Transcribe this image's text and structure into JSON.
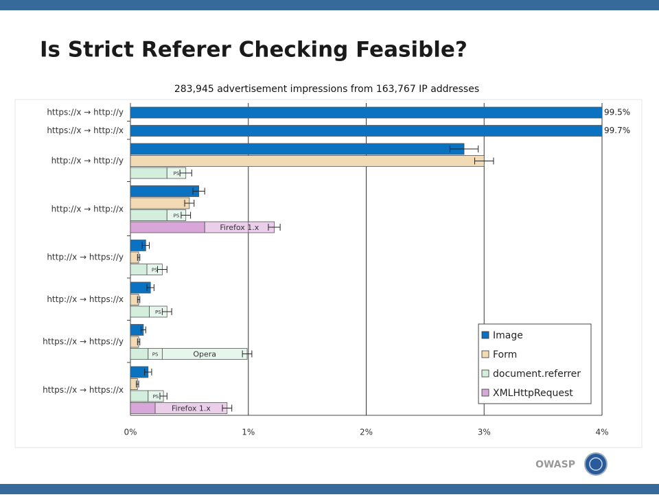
{
  "header": {
    "title": "Is Strict Referer Checking Feasible?"
  },
  "footer": {
    "brand": "OWASP"
  },
  "chart_data": {
    "type": "bar",
    "orientation": "horizontal",
    "title": "283,945 advertisement impressions from 163,767 IP addresses",
    "categories": [
      "https://x → http://y",
      "https://x → http://x",
      "http://x → http://y",
      "http://x → http://x",
      "http://x → https://y",
      "http://x → https://x",
      "https://x → https://y",
      "https://x → https://x"
    ],
    "xlim": [
      0,
      4
    ],
    "xticks": [
      {
        "value": 0,
        "label": "0%"
      },
      {
        "value": 1,
        "label": "1%"
      },
      {
        "value": 2,
        "label": "2%"
      },
      {
        "value": 3,
        "label": "3%"
      },
      {
        "value": 4,
        "label": "4%"
      }
    ],
    "grid": true,
    "legend": "lower right",
    "series": [
      {
        "name": "Image",
        "color": "#0a72c0",
        "values": [
          99.5,
          99.7,
          2.83,
          0.58,
          0.13,
          0.17,
          0.11,
          0.15
        ],
        "value_labels": [
          "99.5%",
          "99.7%",
          null,
          null,
          null,
          null,
          null,
          null
        ],
        "errors": [
          null,
          null,
          0.12,
          0.05,
          0.03,
          0.03,
          0.02,
          0.03
        ],
        "segments": [
          null,
          null,
          null,
          null,
          null,
          null,
          null,
          null
        ]
      },
      {
        "name": "Form",
        "color": "#f1dab4",
        "values": [
          null,
          null,
          3.0,
          0.5,
          0.07,
          0.07,
          0.07,
          0.06
        ],
        "errors": [
          null,
          null,
          0.08,
          0.04,
          0.01,
          0.01,
          0.01,
          0.01
        ],
        "segments": [
          null,
          null,
          null,
          null,
          null,
          null,
          null,
          null
        ]
      },
      {
        "name": "document.referrer",
        "color": "#d3eedc",
        "values": [
          null,
          null,
          0.31,
          0.31,
          0.14,
          0.16,
          0.15,
          0.15
        ],
        "errors": [
          null,
          null,
          0.05,
          0.04,
          0.04,
          0.04,
          0.04,
          0.03
        ],
        "segments": [
          null,
          null,
          [
            {
              "label": "PS",
              "value": 0.16
            }
          ],
          [
            {
              "label": "PS",
              "value": 0.16
            }
          ],
          [
            {
              "label": "PS",
              "value": 0.13
            }
          ],
          [
            {
              "label": "PS",
              "value": 0.15
            }
          ],
          [
            {
              "label": "PS",
              "value": 0.12
            },
            {
              "label": "Opera",
              "value": 0.72
            }
          ],
          [
            {
              "label": "PS",
              "value": 0.13
            }
          ]
        ]
      },
      {
        "name": "XMLHttpRequest",
        "color": "#d9a6d9",
        "values": [
          null,
          null,
          null,
          0.63,
          null,
          null,
          null,
          0.21
        ],
        "errors": [
          null,
          null,
          null,
          0.05,
          null,
          null,
          null,
          0.04
        ],
        "segments": [
          null,
          null,
          null,
          [
            {
              "label": "Firefox 1.x",
              "value": 0.59
            }
          ],
          null,
          null,
          null,
          [
            {
              "label": "Firefox 1.x",
              "value": 0.61
            }
          ]
        ]
      }
    ]
  }
}
